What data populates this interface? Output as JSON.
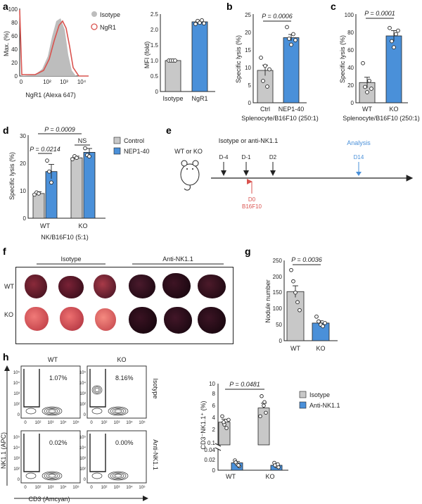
{
  "panels": {
    "a": {
      "letter": "a",
      "hist": {
        "ylabel": "Max. (%)",
        "xlabel": "NgR1 (Alexa 647)",
        "yticks": [
          "0",
          "20",
          "40",
          "60",
          "80",
          "100"
        ],
        "xticks": [
          "0",
          "10²",
          "10³",
          "10⁴"
        ],
        "legend": [
          {
            "label": "Isotype",
            "color": "#bdbdbd"
          },
          {
            "label": "NgR1",
            "color": "#d9534f"
          }
        ]
      },
      "mfi": {
        "ylabel": "MFI (fold)",
        "yticks": [
          "0",
          "0.5",
          "1.0",
          "1.5",
          "2.0",
          "2.5"
        ],
        "categories": [
          "Isotype",
          "NgR1"
        ],
        "colors": [
          "#c8c8c8",
          "#4a90d9"
        ]
      }
    },
    "b": {
      "letter": "b",
      "ylabel": "Specific lysis (%)",
      "yticks": [
        "0",
        "5",
        "10",
        "15",
        "20",
        "25"
      ],
      "categories": [
        "Ctrl",
        "NEP1-40"
      ],
      "pvalue": "P = 0.0006",
      "caption": "Splenocyte/B16F10 (250:1)"
    },
    "c": {
      "letter": "c",
      "ylabel": "Specific lysis (%)",
      "yticks": [
        "0",
        "20",
        "40",
        "60",
        "80",
        "100"
      ],
      "categories": [
        "WT",
        "KO"
      ],
      "pvalue": "P = 0.0001",
      "caption": "Splenocyte/B16F10 (250:1)"
    },
    "d": {
      "letter": "d",
      "ylabel": "Specific lysis (%)",
      "yticks": [
        "0",
        "10",
        "20",
        "30"
      ],
      "groups": [
        "WT",
        "KO"
      ],
      "p_top": "P = 0.0009",
      "p_wt": "P = 0.0214",
      "p_ko": "NS",
      "caption": "NK/B16F10 (5:1)",
      "legend": [
        {
          "label": "Control",
          "color": "#c8c8c8"
        },
        {
          "label": "NEP1-40",
          "color": "#4a90d9"
        }
      ]
    },
    "e": {
      "letter": "e",
      "mouse_label": "WT or KO",
      "treatment": "Isotype or anti-NK1.1",
      "days": [
        "D-4",
        "D-1",
        "D2"
      ],
      "d0": "D0",
      "tumor": "B16F10",
      "analysis": "Analysis",
      "d14": "D14"
    },
    "f": {
      "letter": "f",
      "groups": [
        "Isotype",
        "Anti-NK1.1"
      ],
      "rows": [
        "WT",
        "KO"
      ]
    },
    "g": {
      "letter": "g",
      "ylabel": "Nodule number",
      "yticks": [
        "0",
        "50",
        "100",
        "150",
        "200",
        "250"
      ],
      "categories": [
        "WT",
        "KO"
      ],
      "pvalue": "P = 0.0036"
    },
    "h": {
      "letter": "h",
      "columns": [
        "WT",
        "KO"
      ],
      "rows": [
        "Isotype",
        "Anti-NK1.1"
      ],
      "percents": [
        "1.07%",
        "8.16%",
        "0.02%",
        "0.00%"
      ],
      "ylabel": "NK1.1 (APC)",
      "xlabel": "CD3 (Amcyan)",
      "axis_ticks": [
        "0",
        "10²",
        "10³",
        "10⁴",
        "10⁵"
      ],
      "bar": {
        "ylabel": "CD3⁻NK1.1⁺ (%)",
        "yticks_upper": [
          "0.1",
          "2",
          "4",
          "6",
          "8",
          "10"
        ],
        "yticks_lower": [
          "0",
          "0.02",
          "0.04"
        ],
        "groups": [
          "WT",
          "KO"
        ],
        "pvalue": "P = 0.0481",
        "legend": [
          {
            "label": "Isotype",
            "color": "#c8c8c8"
          },
          {
            "label": "Anti-NK1.1",
            "color": "#4a90d9"
          }
        ]
      }
    }
  },
  "chart_data": [
    {
      "panel": "a-mfi",
      "type": "bar",
      "categories": [
        "Isotype",
        "NgR1"
      ],
      "values": [
        1.0,
        2.25
      ],
      "ylim": [
        0,
        2.5
      ],
      "ylabel": "MFI (fold)"
    },
    {
      "panel": "b",
      "type": "bar",
      "categories": [
        "Ctrl",
        "NEP1-40"
      ],
      "values": [
        9.2,
        18.5
      ],
      "errors": [
        1.5,
        0.9
      ],
      "ylim": [
        0,
        25
      ],
      "ylabel": "Specific lysis (%)"
    },
    {
      "panel": "c",
      "type": "bar",
      "categories": [
        "WT",
        "KO"
      ],
      "values": [
        23,
        76
      ],
      "errors": [
        6,
        6
      ],
      "ylim": [
        0,
        100
      ],
      "ylabel": "Specific lysis (%)"
    },
    {
      "panel": "d",
      "type": "bar",
      "categories": [
        "WT",
        "KO"
      ],
      "series": [
        {
          "name": "Control",
          "values": [
            9,
            22
          ],
          "errors": [
            0.6,
            0.6
          ]
        },
        {
          "name": "NEP1-40",
          "values": [
            17,
            24
          ],
          "errors": [
            2.6,
            1.4
          ]
        }
      ],
      "ylim": [
        0,
        30
      ],
      "ylabel": "Specific lysis (%)"
    },
    {
      "panel": "g",
      "type": "bar",
      "categories": [
        "WT",
        "KO"
      ],
      "values": [
        153,
        55
      ],
      "errors": [
        18,
        7
      ],
      "ylim": [
        0,
        250
      ],
      "ylabel": "Nodule number"
    },
    {
      "panel": "h-bar",
      "type": "bar",
      "categories": [
        "WT",
        "KO"
      ],
      "series": [
        {
          "name": "Isotype",
          "values": [
            3.6,
            6.0
          ],
          "errors": [
            0.5,
            0.8
          ]
        },
        {
          "name": "Anti-NK1.1",
          "values": [
            0.015,
            0.01
          ],
          "errors": [
            0.003,
            0.002
          ]
        }
      ],
      "ylabel": "CD3⁻NK1.1⁺ (%)"
    }
  ]
}
